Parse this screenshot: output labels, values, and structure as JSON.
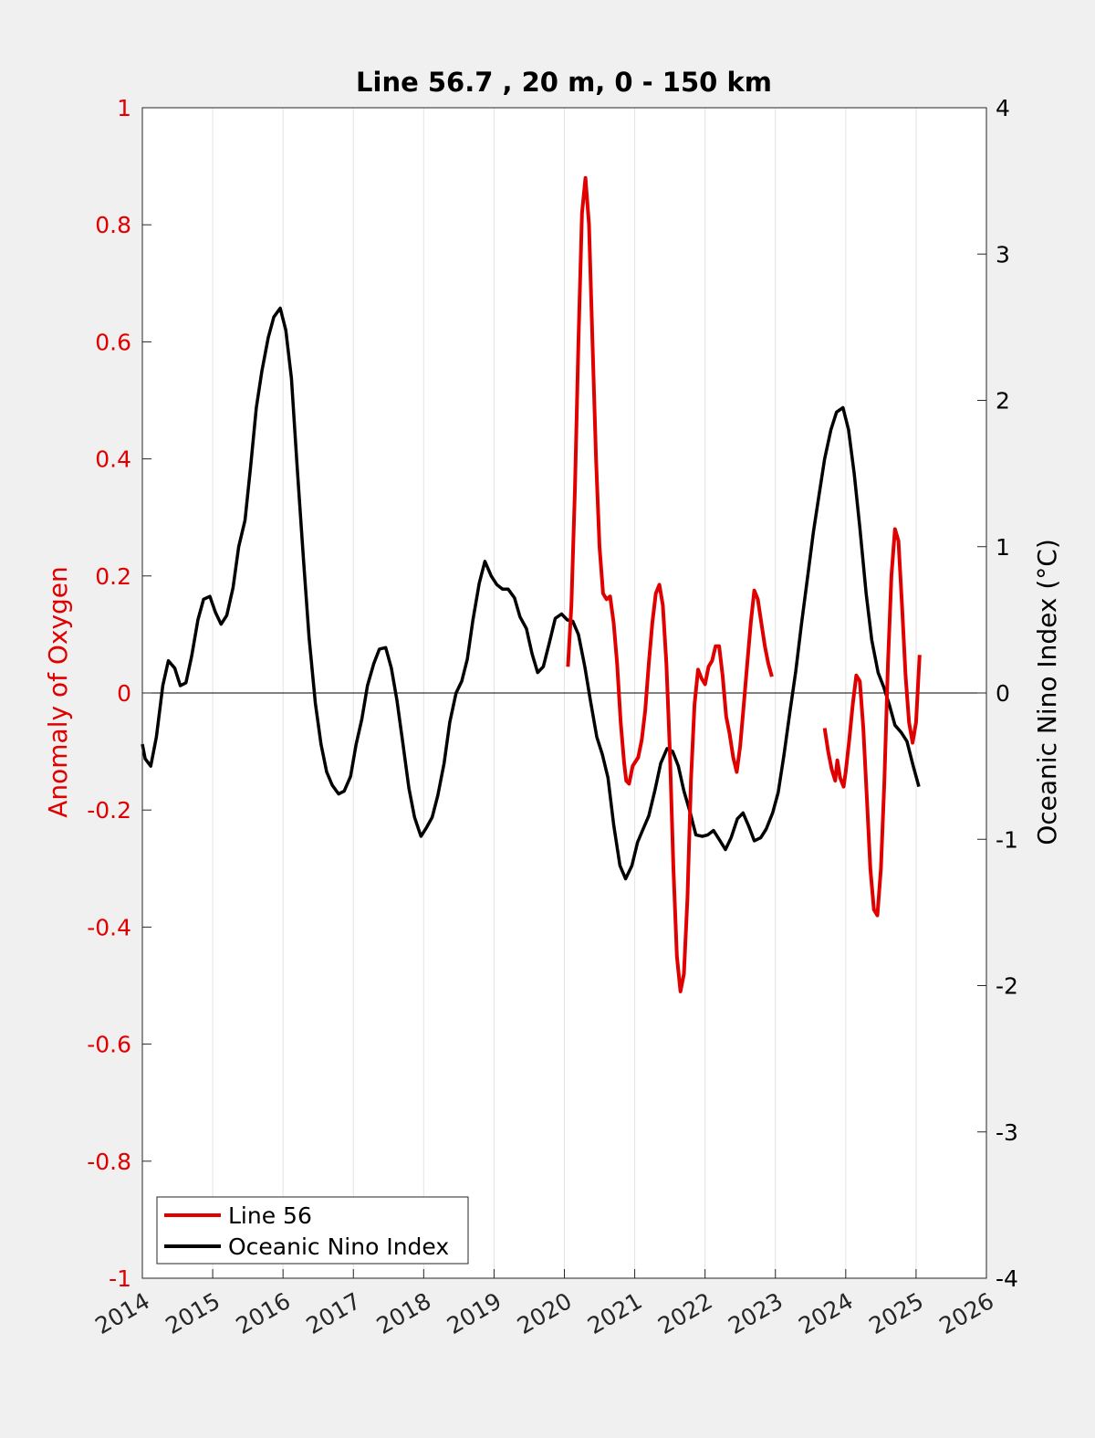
{
  "chart_data": {
    "type": "line",
    "title": "Line 56.7 , 20 m, 0 - 150 km",
    "ylabel_left": "Anomaly of Oxygen",
    "ylabel_right": "Oceanic Nino Index (°C)",
    "xlim": [
      2014,
      2026
    ],
    "ylim_left": [
      -1,
      1
    ],
    "ylim_right": [
      -4,
      4
    ],
    "x_ticks": [
      "2014",
      "2015",
      "2016",
      "2017",
      "2018",
      "2019",
      "2020",
      "2021",
      "2022",
      "2023",
      "2024",
      "2025",
      "2026"
    ],
    "y_ticks_left": [
      "-1",
      "-0.8",
      "-0.6",
      "-0.4",
      "-0.2",
      "0",
      "0.2",
      "0.4",
      "0.6",
      "0.8",
      "1"
    ],
    "y_ticks_right": [
      "-4",
      "-3",
      "-2",
      "-1",
      "0",
      "1",
      "2",
      "3",
      "4"
    ],
    "grid": "vertical",
    "legend_position": "bottom-left",
    "colors": {
      "line56": "#e00000",
      "oni": "#000000",
      "axis_left": "#e00000",
      "axis_right": "#000000"
    },
    "series": [
      {
        "name": "Line 56",
        "axis": "left",
        "segments": [
          [
            [
              2020.05,
              0.045
            ],
            [
              2020.1,
              0.15
            ],
            [
              2020.15,
              0.35
            ],
            [
              2020.2,
              0.6
            ],
            [
              2020.25,
              0.82
            ],
            [
              2020.3,
              0.88
            ],
            [
              2020.35,
              0.8
            ],
            [
              2020.4,
              0.6
            ],
            [
              2020.45,
              0.4
            ],
            [
              2020.5,
              0.25
            ],
            [
              2020.55,
              0.17
            ],
            [
              2020.6,
              0.16
            ],
            [
              2020.65,
              0.165
            ],
            [
              2020.7,
              0.12
            ],
            [
              2020.75,
              0.05
            ],
            [
              2020.8,
              -0.05
            ],
            [
              2020.85,
              -0.12
            ],
            [
              2020.88,
              -0.15
            ],
            [
              2020.92,
              -0.155
            ],
            [
              2020.97,
              -0.125
            ],
            [
              2021.05,
              -0.11
            ],
            [
              2021.1,
              -0.08
            ],
            [
              2021.15,
              -0.03
            ],
            [
              2021.2,
              0.05
            ],
            [
              2021.25,
              0.12
            ],
            [
              2021.3,
              0.17
            ],
            [
              2021.35,
              0.185
            ],
            [
              2021.4,
              0.15
            ],
            [
              2021.45,
              0.05
            ],
            [
              2021.5,
              -0.1
            ],
            [
              2021.55,
              -0.3
            ],
            [
              2021.6,
              -0.45
            ],
            [
              2021.65,
              -0.51
            ],
            [
              2021.7,
              -0.48
            ],
            [
              2021.75,
              -0.35
            ],
            [
              2021.8,
              -0.15
            ],
            [
              2021.85,
              -0.02
            ],
            [
              2021.9,
              0.04
            ],
            [
              2021.95,
              0.025
            ],
            [
              2022.0,
              0.015
            ],
            [
              2022.05,
              0.045
            ],
            [
              2022.1,
              0.055
            ],
            [
              2022.15,
              0.08
            ],
            [
              2022.2,
              0.08
            ],
            [
              2022.25,
              0.03
            ],
            [
              2022.3,
              -0.04
            ],
            [
              2022.35,
              -0.07
            ],
            [
              2022.4,
              -0.11
            ],
            [
              2022.45,
              -0.135
            ],
            [
              2022.5,
              -0.09
            ],
            [
              2022.55,
              -0.02
            ],
            [
              2022.6,
              0.05
            ],
            [
              2022.65,
              0.12
            ],
            [
              2022.7,
              0.175
            ],
            [
              2022.75,
              0.16
            ],
            [
              2022.8,
              0.12
            ],
            [
              2022.85,
              0.08
            ],
            [
              2022.9,
              0.05
            ],
            [
              2022.95,
              0.028
            ]
          ],
          [
            [
              2023.7,
              -0.06
            ],
            [
              2023.75,
              -0.1
            ],
            [
              2023.8,
              -0.13
            ],
            [
              2023.85,
              -0.15
            ],
            [
              2023.88,
              -0.115
            ],
            [
              2023.92,
              -0.145
            ],
            [
              2023.97,
              -0.16
            ],
            [
              2024.0,
              -0.135
            ],
            [
              2024.05,
              -0.08
            ],
            [
              2024.1,
              -0.02
            ],
            [
              2024.15,
              0.03
            ],
            [
              2024.2,
              0.02
            ],
            [
              2024.25,
              -0.06
            ],
            [
              2024.3,
              -0.18
            ],
            [
              2024.35,
              -0.3
            ],
            [
              2024.4,
              -0.37
            ],
            [
              2024.45,
              -0.38
            ],
            [
              2024.5,
              -0.3
            ],
            [
              2024.55,
              -0.15
            ],
            [
              2024.6,
              0.05
            ],
            [
              2024.65,
              0.2
            ],
            [
              2024.7,
              0.28
            ],
            [
              2024.75,
              0.26
            ],
            [
              2024.8,
              0.15
            ],
            [
              2024.85,
              0.03
            ],
            [
              2024.9,
              -0.05
            ],
            [
              2024.95,
              -0.085
            ],
            [
              2025.0,
              -0.05
            ],
            [
              2025.05,
              0.065
            ]
          ]
        ]
      },
      {
        "name": "Oceanic Nino Index",
        "axis": "right",
        "points": [
          [
            2014.0,
            -0.35
          ],
          [
            2014.04,
            -0.45
          ],
          [
            2014.12,
            -0.5
          ],
          [
            2014.2,
            -0.3
          ],
          [
            2014.29,
            0.05
          ],
          [
            2014.37,
            0.22
          ],
          [
            2014.46,
            0.17
          ],
          [
            2014.54,
            0.05
          ],
          [
            2014.62,
            0.07
          ],
          [
            2014.7,
            0.25
          ],
          [
            2014.79,
            0.5
          ],
          [
            2014.87,
            0.64
          ],
          [
            2014.96,
            0.66
          ],
          [
            2015.04,
            0.55
          ],
          [
            2015.12,
            0.47
          ],
          [
            2015.2,
            0.53
          ],
          [
            2015.29,
            0.72
          ],
          [
            2015.37,
            1.0
          ],
          [
            2015.46,
            1.18
          ],
          [
            2015.54,
            1.55
          ],
          [
            2015.62,
            1.95
          ],
          [
            2015.7,
            2.2
          ],
          [
            2015.79,
            2.43
          ],
          [
            2015.87,
            2.57
          ],
          [
            2015.96,
            2.63
          ],
          [
            2016.04,
            2.48
          ],
          [
            2016.12,
            2.15
          ],
          [
            2016.2,
            1.55
          ],
          [
            2016.29,
            0.92
          ],
          [
            2016.37,
            0.38
          ],
          [
            2016.46,
            -0.07
          ],
          [
            2016.54,
            -0.35
          ],
          [
            2016.62,
            -0.54
          ],
          [
            2016.7,
            -0.63
          ],
          [
            2016.79,
            -0.69
          ],
          [
            2016.87,
            -0.67
          ],
          [
            2016.96,
            -0.57
          ],
          [
            2017.04,
            -0.35
          ],
          [
            2017.12,
            -0.18
          ],
          [
            2017.2,
            0.05
          ],
          [
            2017.29,
            0.2
          ],
          [
            2017.37,
            0.3
          ],
          [
            2017.46,
            0.31
          ],
          [
            2017.54,
            0.17
          ],
          [
            2017.62,
            -0.05
          ],
          [
            2017.7,
            -0.33
          ],
          [
            2017.79,
            -0.65
          ],
          [
            2017.87,
            -0.85
          ],
          [
            2017.96,
            -0.98
          ],
          [
            2018.04,
            -0.92
          ],
          [
            2018.12,
            -0.85
          ],
          [
            2018.2,
            -0.7
          ],
          [
            2018.29,
            -0.48
          ],
          [
            2018.37,
            -0.2
          ],
          [
            2018.46,
            0.0
          ],
          [
            2018.54,
            0.08
          ],
          [
            2018.62,
            0.23
          ],
          [
            2018.7,
            0.5
          ],
          [
            2018.79,
            0.75
          ],
          [
            2018.87,
            0.9
          ],
          [
            2018.96,
            0.8
          ],
          [
            2019.04,
            0.74
          ],
          [
            2019.12,
            0.71
          ],
          [
            2019.2,
            0.71
          ],
          [
            2019.29,
            0.65
          ],
          [
            2019.37,
            0.52
          ],
          [
            2019.46,
            0.44
          ],
          [
            2019.54,
            0.27
          ],
          [
            2019.62,
            0.14
          ],
          [
            2019.7,
            0.18
          ],
          [
            2019.79,
            0.35
          ],
          [
            2019.87,
            0.51
          ],
          [
            2019.96,
            0.54
          ],
          [
            2020.04,
            0.5
          ],
          [
            2020.12,
            0.49
          ],
          [
            2020.2,
            0.4
          ],
          [
            2020.29,
            0.18
          ],
          [
            2020.37,
            -0.05
          ],
          [
            2020.46,
            -0.3
          ],
          [
            2020.54,
            -0.42
          ],
          [
            2020.62,
            -0.58
          ],
          [
            2020.7,
            -0.9
          ],
          [
            2020.79,
            -1.18
          ],
          [
            2020.87,
            -1.27
          ],
          [
            2020.96,
            -1.18
          ],
          [
            2021.04,
            -1.02
          ],
          [
            2021.12,
            -0.93
          ],
          [
            2021.2,
            -0.84
          ],
          [
            2021.29,
            -0.66
          ],
          [
            2021.37,
            -0.48
          ],
          [
            2021.46,
            -0.38
          ],
          [
            2021.54,
            -0.4
          ],
          [
            2021.62,
            -0.5
          ],
          [
            2021.7,
            -0.67
          ],
          [
            2021.79,
            -0.82
          ],
          [
            2021.87,
            -0.97
          ],
          [
            2021.96,
            -0.98
          ],
          [
            2022.04,
            -0.97
          ],
          [
            2022.12,
            -0.94
          ],
          [
            2022.2,
            -1.0
          ],
          [
            2022.29,
            -1.07
          ],
          [
            2022.37,
            -0.99
          ],
          [
            2022.46,
            -0.86
          ],
          [
            2022.54,
            -0.82
          ],
          [
            2022.62,
            -0.91
          ],
          [
            2022.7,
            -1.01
          ],
          [
            2022.79,
            -0.99
          ],
          [
            2022.87,
            -0.93
          ],
          [
            2022.96,
            -0.82
          ],
          [
            2023.04,
            -0.68
          ],
          [
            2023.12,
            -0.43
          ],
          [
            2023.2,
            -0.15
          ],
          [
            2023.29,
            0.15
          ],
          [
            2023.37,
            0.47
          ],
          [
            2023.46,
            0.8
          ],
          [
            2023.54,
            1.1
          ],
          [
            2023.62,
            1.35
          ],
          [
            2023.7,
            1.6
          ],
          [
            2023.79,
            1.8
          ],
          [
            2023.87,
            1.92
          ],
          [
            2023.96,
            1.95
          ],
          [
            2024.04,
            1.8
          ],
          [
            2024.12,
            1.5
          ],
          [
            2024.2,
            1.13
          ],
          [
            2024.29,
            0.68
          ],
          [
            2024.37,
            0.36
          ],
          [
            2024.46,
            0.14
          ],
          [
            2024.54,
            0.04
          ],
          [
            2024.62,
            -0.08
          ],
          [
            2024.7,
            -0.22
          ],
          [
            2024.79,
            -0.27
          ],
          [
            2024.87,
            -0.33
          ],
          [
            2024.96,
            -0.5
          ],
          [
            2025.04,
            -0.64
          ]
        ]
      }
    ]
  }
}
